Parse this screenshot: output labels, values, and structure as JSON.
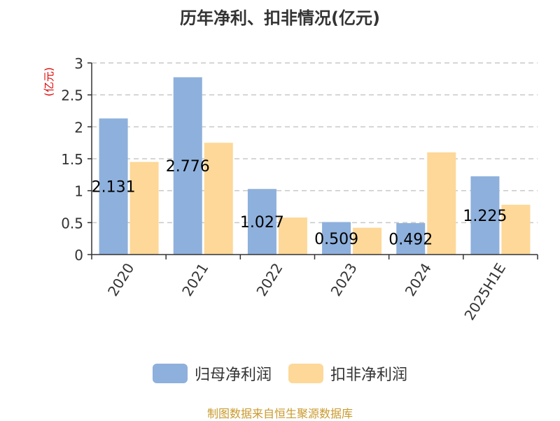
{
  "chart_data": {
    "type": "bar",
    "title": "历年净利、扣非情况(亿元)",
    "ylabel": "(亿元)",
    "categories": [
      "2020",
      "2021",
      "2022",
      "2023",
      "2024",
      "2025H1E"
    ],
    "series": [
      {
        "name": "归母净利润",
        "values": [
          2.131,
          2.776,
          1.027,
          0.509,
          0.492,
          1.225
        ],
        "color": "#8eb0dc",
        "labels": [
          "2.131",
          "2.776",
          "1.027",
          "0.509",
          "0.492",
          "1.225"
        ]
      },
      {
        "name": "扣非净利润",
        "values": [
          1.45,
          1.75,
          0.58,
          0.42,
          1.6,
          0.78
        ],
        "color": "#fdd898"
      }
    ],
    "yticks": [
      "0",
      "0.5",
      "1",
      "1.5",
      "2",
      "2.5",
      "3"
    ],
    "ylim": [
      0,
      3
    ],
    "grid": true,
    "legend_position": "bottom-center"
  },
  "source_note": "制图数据来自恒生聚源数据库",
  "colors": {
    "title": "#333333",
    "axis": "#333333",
    "ylabel": "#dd0000",
    "grid": "#c8c8c8",
    "source": "#c99a2e"
  }
}
